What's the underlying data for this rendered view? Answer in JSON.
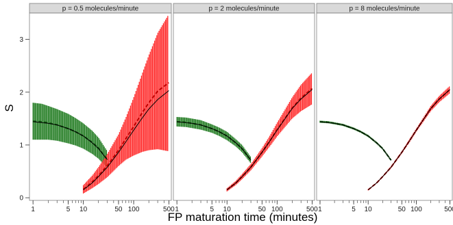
{
  "chart_data": {
    "type": "line",
    "xlabel": "FP maturation time (minutes)",
    "ylabel": "S",
    "x_scale": "log",
    "xlim": [
      0.85,
      560
    ],
    "ylim": [
      -0.05,
      3.5
    ],
    "x_ticks": [
      {
        "value": 1,
        "label": "1"
      },
      {
        "value": 5,
        "label": "5"
      },
      {
        "value": 10,
        "label": "10"
      },
      {
        "value": 50,
        "label": "50"
      },
      {
        "value": 100,
        "label": "100"
      },
      {
        "value": 500,
        "label": "500"
      }
    ],
    "y_ticks": [
      {
        "value": 0,
        "label": "0"
      },
      {
        "value": 1,
        "label": "1"
      },
      {
        "value": 2,
        "label": "2"
      },
      {
        "value": 3,
        "label": "3"
      }
    ],
    "colors": {
      "green": "#1f7a1f",
      "red": "#ff2a2a",
      "fit": "#000000",
      "strip_bg": "#d9d9d9",
      "panel_border": "#7f7f7f"
    },
    "panels": [
      {
        "title": "p = 0.5 molecules/minute",
        "green": {
          "x": [
            1,
            1.5,
            2,
            3,
            5,
            7,
            10,
            15,
            20,
            30
          ],
          "y": [
            1.45,
            1.44,
            1.42,
            1.38,
            1.31,
            1.25,
            1.17,
            1.05,
            0.94,
            0.72
          ],
          "err": [
            0.35,
            0.34,
            0.32,
            0.3,
            0.28,
            0.26,
            0.24,
            0.22,
            0.2,
            0.16
          ]
        },
        "red": {
          "x": [
            10,
            15,
            20,
            30,
            50,
            70,
            100,
            150,
            200,
            300,
            500
          ],
          "y": [
            0.16,
            0.3,
            0.42,
            0.61,
            0.9,
            1.12,
            1.35,
            1.62,
            1.8,
            2.02,
            2.18
          ],
          "err": [
            0.08,
            0.12,
            0.16,
            0.22,
            0.3,
            0.4,
            0.55,
            0.75,
            0.9,
            1.1,
            1.3
          ]
        },
        "fit_green": {
          "x": [
            1,
            2,
            3,
            5,
            7,
            10,
            15,
            20,
            30
          ],
          "y": [
            1.44,
            1.41,
            1.38,
            1.31,
            1.25,
            1.17,
            1.04,
            0.93,
            0.72
          ]
        },
        "fit_red": {
          "x": [
            10,
            15,
            20,
            30,
            50,
            70,
            100,
            150,
            200,
            300,
            500
          ],
          "y": [
            0.15,
            0.28,
            0.4,
            0.58,
            0.86,
            1.06,
            1.28,
            1.52,
            1.68,
            1.86,
            2.03
          ]
        }
      },
      {
        "title": "p = 2 molecules/minute",
        "green": {
          "x": [
            1,
            1.5,
            2,
            3,
            5,
            7,
            10,
            15,
            20,
            30
          ],
          "y": [
            1.44,
            1.43,
            1.41,
            1.38,
            1.31,
            1.25,
            1.17,
            1.04,
            0.93,
            0.71
          ],
          "err": [
            0.09,
            0.09,
            0.09,
            0.09,
            0.08,
            0.08,
            0.08,
            0.07,
            0.07,
            0.06
          ]
        },
        "red": {
          "x": [
            10,
            15,
            20,
            30,
            50,
            70,
            100,
            150,
            200,
            300,
            500
          ],
          "y": [
            0.15,
            0.28,
            0.4,
            0.58,
            0.86,
            1.06,
            1.29,
            1.53,
            1.7,
            1.89,
            2.07
          ],
          "err": [
            0.03,
            0.04,
            0.05,
            0.06,
            0.08,
            0.1,
            0.13,
            0.17,
            0.2,
            0.25,
            0.3
          ]
        },
        "fit_green": {
          "x": [
            1,
            2,
            3,
            5,
            7,
            10,
            15,
            20,
            30
          ],
          "y": [
            1.44,
            1.41,
            1.38,
            1.31,
            1.25,
            1.17,
            1.04,
            0.93,
            0.71
          ]
        },
        "fit_red": {
          "x": [
            10,
            15,
            20,
            30,
            50,
            70,
            100,
            150,
            200,
            300,
            500
          ],
          "y": [
            0.15,
            0.28,
            0.4,
            0.58,
            0.86,
            1.06,
            1.28,
            1.52,
            1.69,
            1.87,
            2.05
          ]
        }
      },
      {
        "title": "p = 8 molecules/minute",
        "green": {
          "x": [
            1,
            1.5,
            2,
            3,
            5,
            7,
            10,
            15,
            20,
            30
          ],
          "y": [
            1.44,
            1.43,
            1.41,
            1.38,
            1.31,
            1.25,
            1.17,
            1.04,
            0.93,
            0.71
          ],
          "err": [
            0.02,
            0.02,
            0.02,
            0.02,
            0.02,
            0.02,
            0.02,
            0.02,
            0.02,
            0.02
          ]
        },
        "red": {
          "x": [
            10,
            15,
            20,
            30,
            50,
            70,
            100,
            150,
            200,
            300,
            500
          ],
          "y": [
            0.15,
            0.28,
            0.4,
            0.58,
            0.86,
            1.06,
            1.28,
            1.52,
            1.69,
            1.87,
            2.05
          ],
          "err": [
            0.01,
            0.01,
            0.01,
            0.02,
            0.02,
            0.03,
            0.03,
            0.04,
            0.05,
            0.06,
            0.07
          ]
        },
        "fit_green": {
          "x": [
            1,
            2,
            3,
            5,
            7,
            10,
            15,
            20,
            30
          ],
          "y": [
            1.44,
            1.41,
            1.38,
            1.31,
            1.25,
            1.17,
            1.04,
            0.93,
            0.71
          ]
        },
        "fit_red": {
          "x": [
            10,
            15,
            20,
            30,
            50,
            70,
            100,
            150,
            200,
            300,
            500
          ],
          "y": [
            0.15,
            0.28,
            0.4,
            0.58,
            0.86,
            1.06,
            1.28,
            1.52,
            1.69,
            1.87,
            2.05
          ]
        }
      }
    ]
  }
}
